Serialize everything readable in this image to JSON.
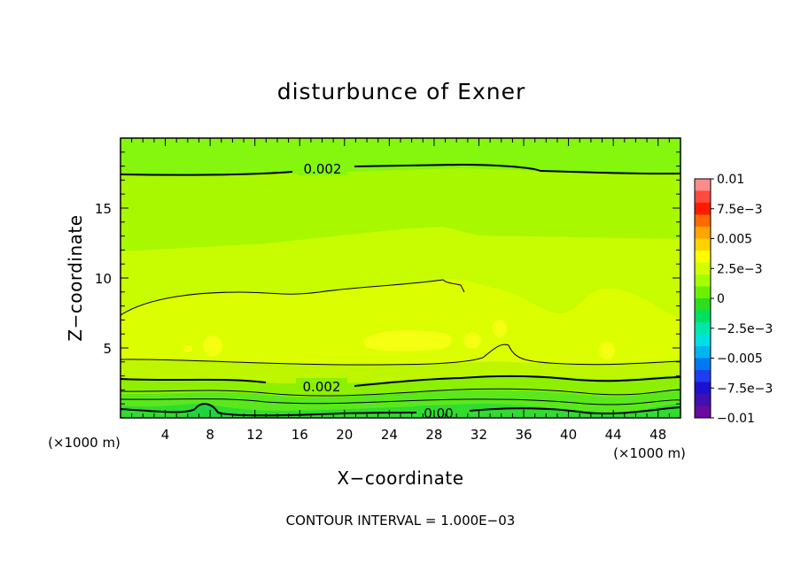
{
  "chart_data": {
    "type": "contour",
    "title": "disturbunce of Exner",
    "xlabel": "X−coordinate",
    "ylabel": "Z−coordinate",
    "x_unit_left": "(×1000 m)",
    "x_unit_right": "(×1000 m)",
    "xlim": [
      0,
      50
    ],
    "ylim": [
      0,
      20
    ],
    "x_ticks": [
      4,
      8,
      12,
      16,
      20,
      24,
      28,
      32,
      36,
      40,
      44,
      48
    ],
    "y_ticks": [
      5,
      10,
      15
    ],
    "x_tick_labels": [
      "4",
      "8",
      "12",
      "16",
      "20",
      "24",
      "28",
      "32",
      "36",
      "40",
      "44",
      "48"
    ],
    "y_tick_labels": [
      "5",
      "10",
      "15"
    ],
    "contour_interval_text": "CONTOUR INTERVAL = 1.000E−03",
    "contour_interval": 0.001,
    "contour_labels": [
      {
        "text": "0.002",
        "x": 17.5,
        "z": 17.9
      },
      {
        "text": "0.002",
        "x": 18.0,
        "z": 2.3
      },
      {
        "text": "0.00",
        "x": 28.0,
        "z": 0.4
      }
    ],
    "colorbar": {
      "min": -0.01,
      "max": 0.01,
      "labels": [
        "0.01",
        "7.5e−3",
        "0.005",
        "2.5e−3",
        "0",
        "−2.5e−3",
        "−0.005",
        "−7.5e−3",
        "−0.01"
      ],
      "colors_top_to_bottom": [
        "#ff8c8c",
        "#ff4a3c",
        "#ff1a00",
        "#ff6a00",
        "#ffa500",
        "#ffd200",
        "#ffff00",
        "#d2ff00",
        "#a6ff00",
        "#6cf000",
        "#2edc20",
        "#00e060",
        "#00e8a8",
        "#00e0e0",
        "#00b4f0",
        "#0078f0",
        "#1e3cf0",
        "#1e10d0",
        "#4010b0",
        "#6a0aa0"
      ]
    },
    "bands": [
      {
        "range": "0.0015–0.0025",
        "color": "#85f60e",
        "z_range": [
          17.2,
          20
        ]
      },
      {
        "range": "0.0025–0.0030",
        "color": "#a8f800",
        "z_range": [
          12,
          17.2
        ]
      },
      {
        "range": "0.0030–0.0035",
        "color": "#c8fc00",
        "z_range": [
          9,
          12
        ]
      },
      {
        "range": "0.0035–0.0040",
        "color": "#dcff00",
        "z_range": [
          4.2,
          9
        ]
      },
      {
        "range": "0.0040–0.0045",
        "color": "#f4ff10",
        "z_range": [
          4.5,
          6.5
        ]
      },
      {
        "range": "0.001–0.002",
        "color": "#3ee22c",
        "z_range": [
          0,
          3
        ]
      }
    ]
  }
}
